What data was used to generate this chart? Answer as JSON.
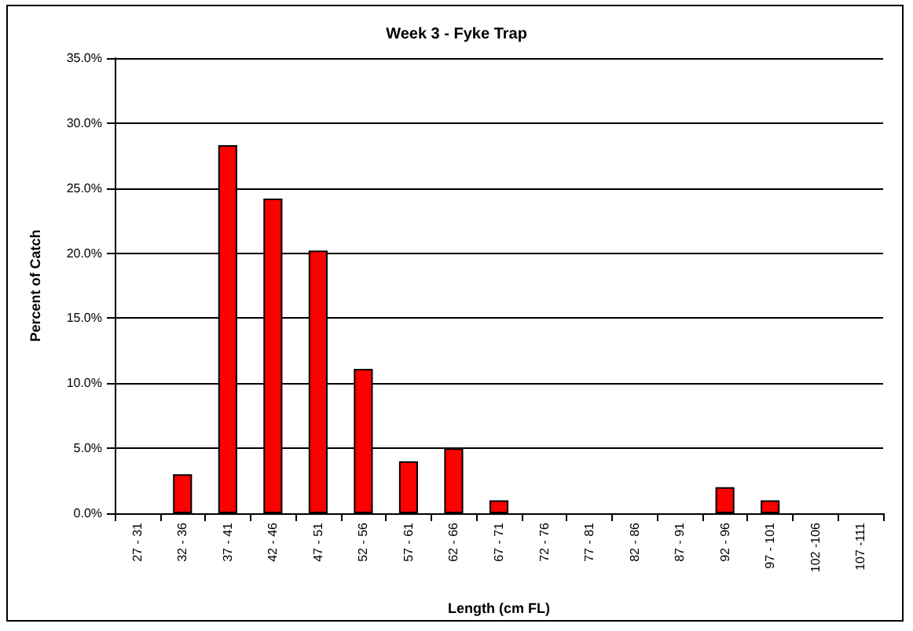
{
  "chart_data": {
    "type": "bar",
    "title": "Week 3 - Fyke Trap",
    "xlabel": "Length (cm FL)",
    "ylabel": "Percent of Catch",
    "categories": [
      "27 - 31",
      "32 - 36",
      "37 - 41",
      "42 - 46",
      "47 - 51",
      "52 - 56",
      "57 - 61",
      "62 - 66",
      "67 - 71",
      "72 - 76",
      "77 - 81",
      "82 - 86",
      "87 - 91",
      "92 - 96",
      "97 - 101",
      "102 -106",
      "107 -111"
    ],
    "values": [
      0,
      3.0,
      28.3,
      24.2,
      20.2,
      11.1,
      4.0,
      5.0,
      1.0,
      0,
      0,
      0,
      0,
      2.0,
      1.0,
      0,
      0
    ],
    "color": "#ff0000",
    "ylim": [
      0,
      35
    ],
    "yticks": [
      {
        "value": 0,
        "label": "0.0%"
      },
      {
        "value": 5,
        "label": "5.0%"
      },
      {
        "value": 10,
        "label": "10.0%"
      },
      {
        "value": 15,
        "label": "15.0%"
      },
      {
        "value": 20,
        "label": "20.0%"
      },
      {
        "value": 25,
        "label": "25.0%"
      },
      {
        "value": 30,
        "label": "30.0%"
      },
      {
        "value": 35,
        "label": "35.0%"
      }
    ],
    "grid": "y"
  }
}
